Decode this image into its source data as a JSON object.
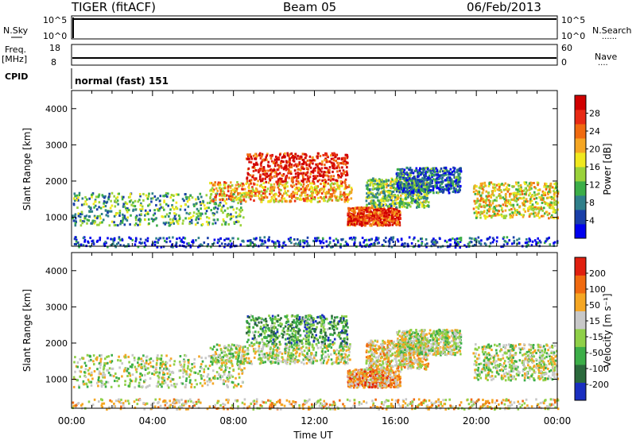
{
  "header": {
    "station": "TIGER (fitACF)",
    "beam": "Beam 05",
    "date": "06/Feb/2013"
  },
  "side_labels": {
    "nsky": "N.Sky",
    "nsearch": "N.Search",
    "freq": "Freq.",
    "freq_unit": "[MHz]",
    "nave": "Nave",
    "cpid": "CPID",
    "dotted": "......",
    "dotted_short": "...."
  },
  "cpid_value": "normal (fast) 151",
  "colors": {
    "frame": "#000000",
    "background": "#ffffff"
  },
  "chart_data": [
    {
      "type": "line",
      "name_panel": "noise",
      "yticks_left": [
        "10^5",
        "10^0"
      ],
      "yticks_right": [
        "10^5",
        "10^0"
      ],
      "x": [
        "00:00",
        "24:00"
      ],
      "series": [
        {
          "name": "N.Sky",
          "values": [
            100000,
            100000
          ]
        },
        {
          "name": "N.Search",
          "values": [
            100000,
            100000
          ]
        }
      ]
    },
    {
      "type": "line",
      "name_panel": "frequency",
      "yticks_left": [
        "18",
        "8"
      ],
      "yticks_right": [
        "60",
        "0"
      ],
      "series": [
        {
          "name": "Freq.",
          "values": [
            9.9,
            9.9
          ]
        },
        {
          "name": "Nave",
          "values": [
            0,
            0
          ]
        }
      ]
    },
    {
      "type": "heatmap",
      "name_panel": "power",
      "ylabel": "Slant Range [km]",
      "ylim": [
        200,
        4500
      ],
      "yticks": [
        "1000",
        "2000",
        "3000",
        "4000"
      ],
      "xticks": [
        "00:00",
        "04:00",
        "08:00",
        "12:00",
        "16:00",
        "20:00",
        "00:00"
      ],
      "xlim_hours": [
        0,
        24
      ],
      "colorbar_label": "Power [dB]",
      "colorbar_ticks": [
        "4",
        "8",
        "12",
        "16",
        "20",
        "24",
        "28"
      ],
      "colorscale": [
        "#0000ee",
        "#1a3fa8",
        "#2f7f8a",
        "#3cae48",
        "#9ad23a",
        "#f0e81e",
        "#f5a623",
        "#f06a10",
        "#e82a14",
        "#d00000"
      ],
      "regions": [
        {
          "t0": 0.0,
          "t1": 8.5,
          "r0": 800,
          "r1": 1700,
          "level": 0.35
        },
        {
          "t0": 6.8,
          "t1": 13.8,
          "r0": 1450,
          "r1": 2000,
          "level": 0.65
        },
        {
          "t0": 8.6,
          "t1": 13.6,
          "r0": 2000,
          "r1": 2800,
          "level": 0.9
        },
        {
          "t0": 13.6,
          "t1": 16.2,
          "r0": 800,
          "r1": 1300,
          "level": 0.85
        },
        {
          "t0": 14.5,
          "t1": 17.6,
          "r0": 1300,
          "r1": 2100,
          "level": 0.4
        },
        {
          "t0": 16.0,
          "t1": 19.2,
          "r0": 1700,
          "r1": 2400,
          "level": 0.2
        },
        {
          "t0": 19.8,
          "t1": 24.0,
          "r0": 1000,
          "r1": 2000,
          "level": 0.55
        },
        {
          "t0": 0.0,
          "t1": 24.0,
          "r0": 200,
          "r1": 480,
          "level": 0.15
        }
      ]
    },
    {
      "type": "heatmap",
      "name_panel": "velocity",
      "ylabel": "Slant Range [km]",
      "ylim": [
        200,
        4500
      ],
      "yticks": [
        "1000",
        "2000",
        "3000",
        "4000"
      ],
      "xticks": [
        "00:00",
        "04:00",
        "08:00",
        "12:00",
        "16:00",
        "20:00",
        "00:00"
      ],
      "xlabel": "Time UT",
      "colorbar_label": "Velocity [m s⁻¹]",
      "colorbar_ticks": [
        "200",
        "100",
        "50",
        "15",
        "-15",
        "-50",
        "-100",
        "-200"
      ],
      "colorscale": [
        "#1a2fc0",
        "#2b6a3c",
        "#3cae48",
        "#8fd048",
        "#c8c8c8",
        "#f5a623",
        "#f06a10",
        "#e02010"
      ],
      "regions": [
        {
          "t0": 0.0,
          "t1": 8.5,
          "r0": 800,
          "r1": 1700,
          "level": 0.5
        },
        {
          "t0": 6.8,
          "t1": 13.8,
          "r0": 1450,
          "r1": 2000,
          "level": 0.5
        },
        {
          "t0": 8.6,
          "t1": 13.6,
          "r0": 2000,
          "r1": 2800,
          "level": 0.3
        },
        {
          "t0": 13.6,
          "t1": 16.2,
          "r0": 800,
          "r1": 1300,
          "level": 0.7
        },
        {
          "t0": 14.5,
          "t1": 17.6,
          "r0": 1300,
          "r1": 2100,
          "level": 0.6
        },
        {
          "t0": 16.0,
          "t1": 19.2,
          "r0": 1700,
          "r1": 2400,
          "level": 0.5
        },
        {
          "t0": 19.8,
          "t1": 24.0,
          "r0": 1000,
          "r1": 2000,
          "level": 0.5
        },
        {
          "t0": 0.0,
          "t1": 24.0,
          "r0": 200,
          "r1": 480,
          "level": 0.6
        }
      ]
    }
  ]
}
